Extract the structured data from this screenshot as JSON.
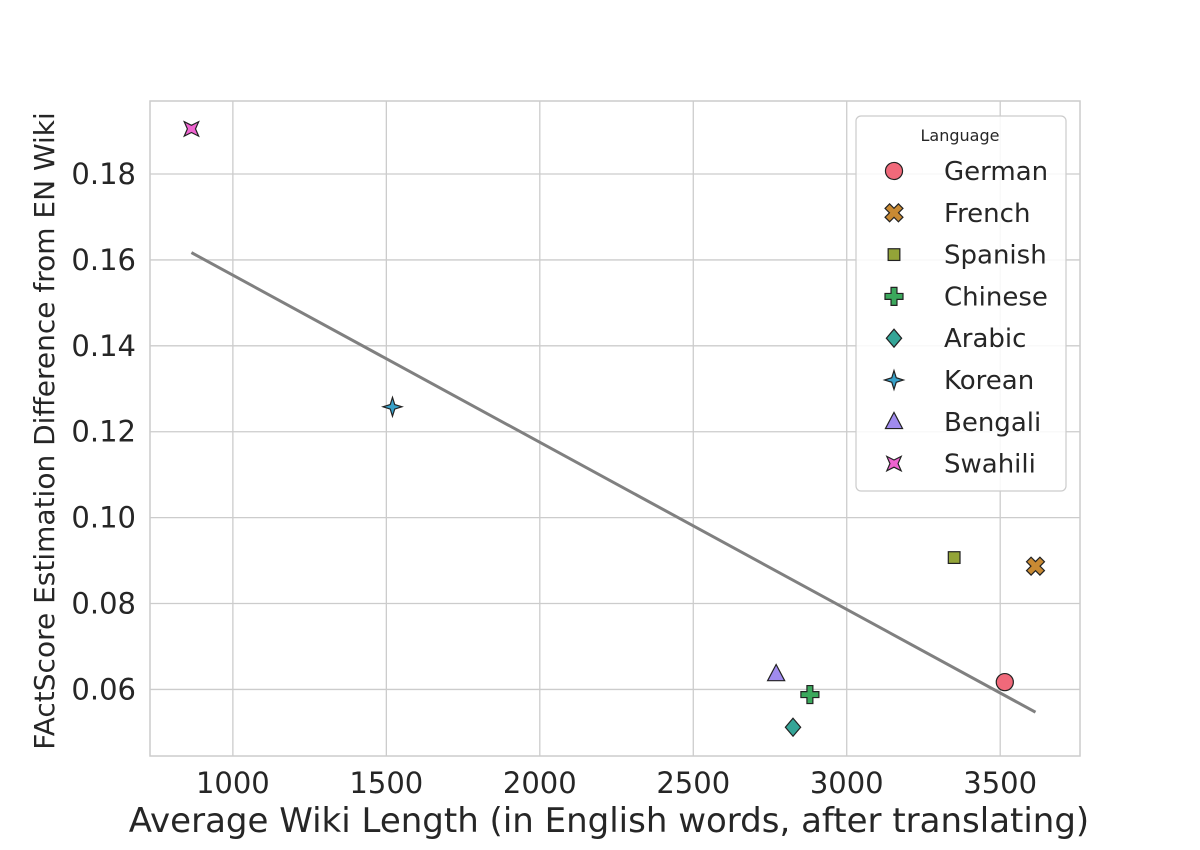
{
  "chart_data": {
    "type": "scatter",
    "title": "",
    "xlabel": "Average Wiki Length (in English words, after translating)",
    "ylabel": "FActScore Estimation Difference from EN Wiki",
    "xlim": [
      730,
      3760
    ],
    "ylim": [
      0.0445,
      0.197
    ],
    "xticks": [
      1000,
      1500,
      2000,
      2500,
      3000,
      3500
    ],
    "yticks": [
      0.06,
      0.08,
      0.1,
      0.12,
      0.14,
      0.16,
      0.18
    ],
    "ytick_labels": [
      "0.06",
      "0.08",
      "0.10",
      "0.12",
      "0.14",
      "0.16",
      "0.18"
    ],
    "grid": true,
    "legend": {
      "title": "Language",
      "placement": "top-right"
    },
    "series": [
      {
        "name": "German",
        "x": 3515,
        "y": 0.0617,
        "color": "#f0697a",
        "marker": "circle"
      },
      {
        "name": "French",
        "x": 3615,
        "y": 0.0887,
        "color": "#c98a33",
        "marker": "x"
      },
      {
        "name": "Spanish",
        "x": 3350,
        "y": 0.0907,
        "color": "#93a438",
        "marker": "square"
      },
      {
        "name": "Chinese",
        "x": 2880,
        "y": 0.0588,
        "color": "#3ba85c",
        "marker": "plus"
      },
      {
        "name": "Arabic",
        "x": 2825,
        "y": 0.0512,
        "color": "#34a597",
        "marker": "diamond"
      },
      {
        "name": "Korean",
        "x": 1520,
        "y": 0.1258,
        "color": "#38a1c9",
        "marker": "star4"
      },
      {
        "name": "Bengali",
        "x": 2770,
        "y": 0.0636,
        "color": "#a08bee",
        "marker": "triangle"
      },
      {
        "name": "Swahili",
        "x": 865,
        "y": 0.1905,
        "color": "#ef63d0",
        "marker": "bowtie"
      }
    ],
    "trendline": {
      "x": [
        865,
        3615
      ],
      "y": [
        0.1617,
        0.0547
      ],
      "color": "#808080"
    }
  }
}
